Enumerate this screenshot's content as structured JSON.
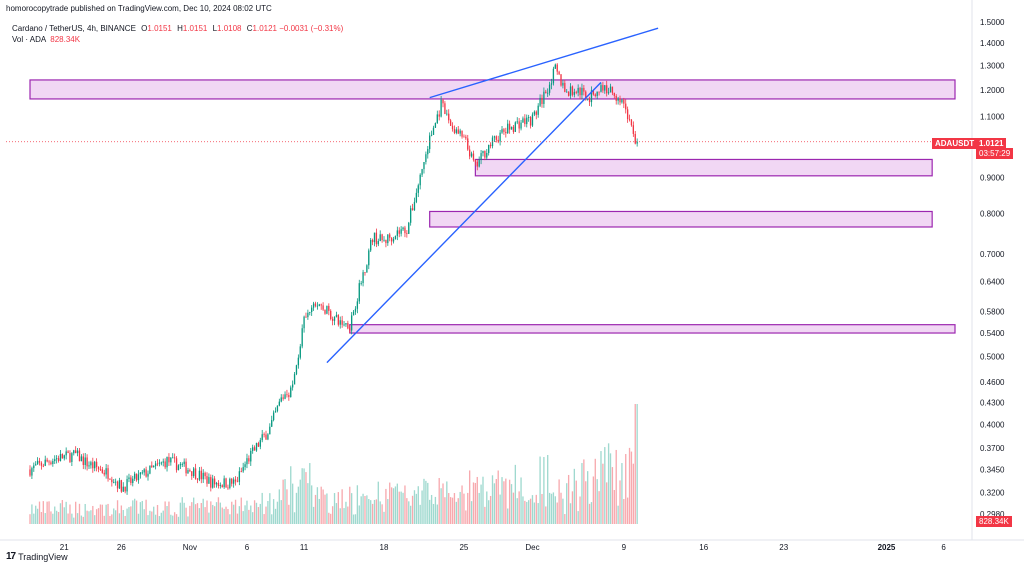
{
  "header": {
    "published_line": "homorocopytrade published on TradingView.com, Dec 10, 2024 08:02 UTC",
    "symbol_line": "Cardano / TetherUS, 4h, BINANCE",
    "ohlc": {
      "o_label": "O",
      "o": "1.0151",
      "h_label": "H",
      "h": "1.0151",
      "l_label": "L",
      "l": "1.0108",
      "c_label": "C",
      "c": "1.0121",
      "change": "−0.0031 (−0.31%)"
    },
    "vol_label": "Vol · ADA",
    "vol_value": "828.34K"
  },
  "footer": {
    "brand": "TradingView",
    "logo": "17"
  },
  "tags": {
    "symbol": "ADAUSDT",
    "last_price": "1.0121",
    "countdown": "03:57:29",
    "last_volume": "828.34K"
  },
  "colors": {
    "up": "#089981",
    "down": "#f23645",
    "up_vol": "#9fd9cf",
    "down_vol": "#f7a9ae",
    "zone_fill": "#ecc9f0",
    "zone_border": "#9c27b0",
    "trendline": "#2962ff",
    "axis_text": "#131722",
    "last_price_line": "#f23645"
  },
  "chart_data": {
    "type": "candlestick",
    "title": "Cardano / TetherUS, 4h, BINANCE",
    "y_scale": "log",
    "y_ticks": [
      "1.5000",
      "1.4000",
      "1.3000",
      "1.2000",
      "1.1000",
      "0.9000",
      "0.8000",
      "0.7000",
      "0.6400",
      "0.5800",
      "0.5400",
      "0.5000",
      "0.4600",
      "0.4300",
      "0.4000",
      "0.3700",
      "0.3450",
      "0.3200",
      "0.2980"
    ],
    "x_ticks": [
      "21",
      "26",
      "Nov",
      "6",
      "11",
      "18",
      "25",
      "Dec",
      "9",
      "16",
      "23",
      "2025",
      "6"
    ],
    "price_anchors": [
      {
        "date": "Oct 18",
        "price": 0.345
      },
      {
        "date": "Oct 20",
        "price": 0.357
      },
      {
        "date": "Oct 22",
        "price": 0.362
      },
      {
        "date": "Oct 23",
        "price": 0.352
      },
      {
        "date": "Oct 25",
        "price": 0.34
      },
      {
        "date": "Oct 26",
        "price": 0.325
      },
      {
        "date": "Oct 28",
        "price": 0.34
      },
      {
        "date": "Oct 30",
        "price": 0.355
      },
      {
        "date": "Nov 1",
        "price": 0.345
      },
      {
        "date": "Nov 3",
        "price": 0.33
      },
      {
        "date": "Nov 5",
        "price": 0.33
      },
      {
        "date": "Nov 6",
        "price": 0.355
      },
      {
        "date": "Nov 8",
        "price": 0.395
      },
      {
        "date": "Nov 9",
        "price": 0.435
      },
      {
        "date": "Nov 10",
        "price": 0.452
      },
      {
        "date": "Nov 11",
        "price": 0.56
      },
      {
        "date": "Nov 12",
        "price": 0.595
      },
      {
        "date": "Nov 13",
        "price": 0.58
      },
      {
        "date": "Nov 14",
        "price": 0.56
      },
      {
        "date": "Nov 15",
        "price": 0.555
      },
      {
        "date": "Nov 16",
        "price": 0.64
      },
      {
        "date": "Nov 17",
        "price": 0.74
      },
      {
        "date": "Nov 18",
        "price": 0.73
      },
      {
        "date": "Nov 19",
        "price": 0.75
      },
      {
        "date": "Nov 20",
        "price": 0.76
      },
      {
        "date": "Nov 21",
        "price": 0.88
      },
      {
        "date": "Nov 22",
        "price": 1.02
      },
      {
        "date": "Nov 23",
        "price": 1.14
      },
      {
        "date": "Nov 24",
        "price": 1.06
      },
      {
        "date": "Nov 25",
        "price": 1.02
      },
      {
        "date": "Nov 26",
        "price": 0.93
      },
      {
        "date": "Nov 27",
        "price": 0.99
      },
      {
        "date": "Nov 28",
        "price": 1.03
      },
      {
        "date": "Nov 29",
        "price": 1.06
      },
      {
        "date": "Nov 30",
        "price": 1.08
      },
      {
        "date": "Dec 1",
        "price": 1.09
      },
      {
        "date": "Dec 2",
        "price": 1.18
      },
      {
        "date": "Dec 3",
        "price": 1.28
      },
      {
        "date": "Dec 4",
        "price": 1.19
      },
      {
        "date": "Dec 5",
        "price": 1.2
      },
      {
        "date": "Dec 6",
        "price": 1.17
      },
      {
        "date": "Dec 7",
        "price": 1.21
      },
      {
        "date": "Dec 8",
        "price": 1.195
      },
      {
        "date": "Dec 9",
        "price": 1.15
      },
      {
        "date": "Dec 10",
        "price": 1.0121
      }
    ],
    "zones": [
      {
        "name": "resistance-zone",
        "from": "Oct 18",
        "to": "Jan 7",
        "top": 1.24,
        "bottom": 1.165
      },
      {
        "name": "support-zone-1",
        "from": "Nov 26",
        "to": "Jan 5",
        "top": 0.955,
        "bottom": 0.905
      },
      {
        "name": "support-zone-2",
        "from": "Nov 22",
        "to": "Jan 5",
        "top": 0.805,
        "bottom": 0.765
      },
      {
        "name": "support-zone-3",
        "from": "Nov 15",
        "to": "Jan 7",
        "top": 0.555,
        "bottom": 0.54
      }
    ],
    "trendlines": [
      {
        "name": "rising-support-line",
        "from": {
          "date": "Nov 13",
          "price": 0.49
        },
        "to": {
          "date": "Dec 7",
          "price": 1.23
        }
      },
      {
        "name": "upper-wedge-line",
        "from": {
          "date": "Nov 22",
          "price": 1.17
        },
        "to": {
          "date": "Dec 12",
          "price": 1.47
        }
      }
    ],
    "last_price": 1.0121,
    "last_volume": "828.34K"
  }
}
